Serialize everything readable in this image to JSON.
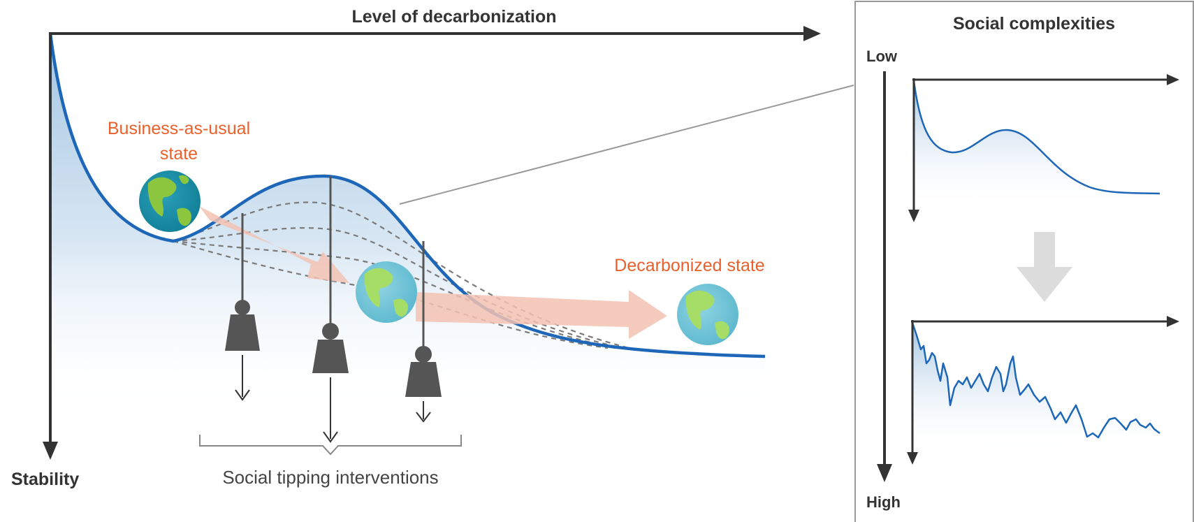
{
  "main_panel": {
    "x_axis_label": "Level of decarbonization",
    "y_axis_label": "Stability",
    "bau_state_line1": "Business-as-usual",
    "bau_state_line2": "state",
    "decarbonized_state": "Decarbonized state",
    "interventions_label": "Social tipping interventions"
  },
  "side_panel": {
    "title": "Social complexities",
    "scale_low": "Low",
    "scale_high": "High"
  },
  "colors": {
    "curve": "#1d66b8",
    "state_text": "#e8602c",
    "axis": "#333333",
    "flow_arrow": "#f3c2b3",
    "weight": "#555555"
  }
}
